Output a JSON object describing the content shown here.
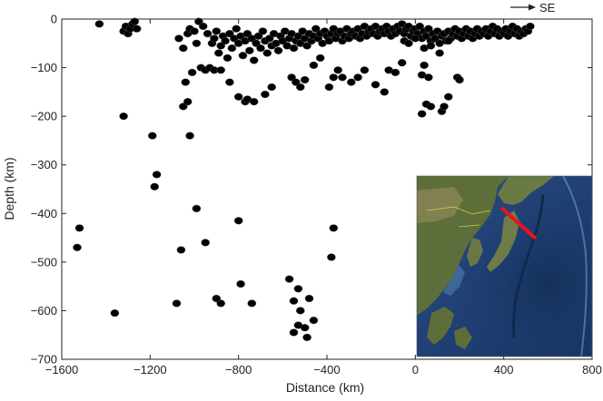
{
  "chart_data": {
    "type": "scatter",
    "xlabel": "Distance (km)",
    "ylabel": "Depth (km)",
    "xlim": [
      -1600,
      800
    ],
    "ylim": [
      -700,
      0
    ],
    "x_ticks": [
      -1600,
      -1200,
      -800,
      -400,
      0,
      400,
      800
    ],
    "y_ticks": [
      0,
      -100,
      -200,
      -300,
      -400,
      -500,
      -600,
      -700
    ],
    "x_tick_labels": [
      "−1600",
      "−1200",
      "−800",
      "−400",
      "0",
      "400",
      "800"
    ],
    "y_tick_labels": [
      "0",
      "−100",
      "−200",
      "−300",
      "−400",
      "−500",
      "−600",
      "−700"
    ],
    "grid": false,
    "legend": "none",
    "marker_color": "#000000",
    "annotation": {
      "text": "SE",
      "arrow": "right",
      "position": "top-right"
    },
    "inset": {
      "kind": "map",
      "position": "bottom-right",
      "profile_line_color": "#e8141c"
    },
    "points": [
      [
        -1430,
        -10
      ],
      [
        -1320,
        -25
      ],
      [
        -1310,
        -15
      ],
      [
        -1300,
        -30
      ],
      [
        -1290,
        -20
      ],
      [
        -1280,
        -10
      ],
      [
        -1270,
        -5
      ],
      [
        -1260,
        -20
      ],
      [
        -1070,
        -40
      ],
      [
        -1050,
        -60
      ],
      [
        -1030,
        -30
      ],
      [
        -1020,
        -20
      ],
      [
        -1000,
        -25
      ],
      [
        -990,
        -50
      ],
      [
        -980,
        -5
      ],
      [
        -960,
        -15
      ],
      [
        -940,
        -30
      ],
      [
        -920,
        -50
      ],
      [
        -910,
        -40
      ],
      [
        -900,
        -25
      ],
      [
        -890,
        -70
      ],
      [
        -880,
        -55
      ],
      [
        -870,
        -35
      ],
      [
        -860,
        -45
      ],
      [
        -850,
        -80
      ],
      [
        -840,
        -30
      ],
      [
        -830,
        -60
      ],
      [
        -820,
        -40
      ],
      [
        -810,
        -20
      ],
      [
        -800,
        -50
      ],
      [
        -790,
        -35
      ],
      [
        -780,
        -75
      ],
      [
        -770,
        -45
      ],
      [
        -760,
        -30
      ],
      [
        -750,
        -65
      ],
      [
        -740,
        -40
      ],
      [
        -730,
        -85
      ],
      [
        -720,
        -50
      ],
      [
        -710,
        -35
      ],
      [
        -700,
        -60
      ],
      [
        -690,
        -25
      ],
      [
        -680,
        -45
      ],
      [
        -670,
        -70
      ],
      [
        -660,
        -40
      ],
      [
        -650,
        -55
      ],
      [
        -640,
        -30
      ],
      [
        -630,
        -50
      ],
      [
        -620,
        -65
      ],
      [
        -610,
        -35
      ],
      [
        -600,
        -45
      ],
      [
        -590,
        -25
      ],
      [
        -580,
        -55
      ],
      [
        -570,
        -40
      ],
      [
        -560,
        -30
      ],
      [
        -550,
        -60
      ],
      [
        -540,
        -45
      ],
      [
        -530,
        -35
      ],
      [
        -520,
        -50
      ],
      [
        -510,
        -25
      ],
      [
        -500,
        -40
      ],
      [
        -490,
        -55
      ],
      [
        -480,
        -30
      ],
      [
        -470,
        -45
      ],
      [
        -460,
        -35
      ],
      [
        -450,
        -20
      ],
      [
        -440,
        -40
      ],
      [
        -430,
        -30
      ],
      [
        -420,
        -50
      ],
      [
        -410,
        -25
      ],
      [
        -400,
        -35
      ],
      [
        -390,
        -45
      ],
      [
        -380,
        -30
      ],
      [
        -370,
        -20
      ],
      [
        -360,
        -40
      ],
      [
        -350,
        -30
      ],
      [
        -340,
        -25
      ],
      [
        -330,
        -45
      ],
      [
        -320,
        -35
      ],
      [
        -310,
        -20
      ],
      [
        -300,
        -40
      ],
      [
        -290,
        -30
      ],
      [
        -280,
        -25
      ],
      [
        -270,
        -35
      ],
      [
        -260,
        -20
      ],
      [
        -250,
        -40
      ],
      [
        -240,
        -30
      ],
      [
        -230,
        -15
      ],
      [
        -220,
        -35
      ],
      [
        -210,
        -25
      ],
      [
        -200,
        -20
      ],
      [
        -190,
        -30
      ],
      [
        -180,
        -15
      ],
      [
        -170,
        -35
      ],
      [
        -160,
        -25
      ],
      [
        -150,
        -20
      ],
      [
        -140,
        -30
      ],
      [
        -130,
        -15
      ],
      [
        -120,
        -25
      ],
      [
        -110,
        -35
      ],
      [
        -100,
        -20
      ],
      [
        -90,
        -30
      ],
      [
        -80,
        -15
      ],
      [
        -70,
        -25
      ],
      [
        -60,
        -10
      ],
      [
        -50,
        -30
      ],
      [
        -40,
        -20
      ],
      [
        -30,
        -15
      ],
      [
        -20,
        -35
      ],
      [
        -10,
        -25
      ],
      [
        0,
        -20
      ],
      [
        10,
        -30
      ],
      [
        20,
        -15
      ],
      [
        30,
        -40
      ],
      [
        40,
        -25
      ],
      [
        50,
        -35
      ],
      [
        60,
        -20
      ],
      [
        70,
        -45
      ],
      [
        80,
        -30
      ],
      [
        90,
        -40
      ],
      [
        100,
        -25
      ],
      [
        110,
        -50
      ],
      [
        120,
        -35
      ],
      [
        130,
        -30
      ],
      [
        140,
        -45
      ],
      [
        150,
        -25
      ],
      [
        160,
        -40
      ],
      [
        170,
        -30
      ],
      [
        180,
        -20
      ],
      [
        190,
        -35
      ],
      [
        200,
        -25
      ],
      [
        210,
        -40
      ],
      [
        220,
        -30
      ],
      [
        230,
        -20
      ],
      [
        240,
        -35
      ],
      [
        250,
        -25
      ],
      [
        260,
        -40
      ],
      [
        270,
        -30
      ],
      [
        280,
        -20
      ],
      [
        290,
        -35
      ],
      [
        300,
        -25
      ],
      [
        310,
        -30
      ],
      [
        320,
        -20
      ],
      [
        330,
        -35
      ],
      [
        340,
        -25
      ],
      [
        350,
        -15
      ],
      [
        360,
        -30
      ],
      [
        370,
        -20
      ],
      [
        380,
        -35
      ],
      [
        390,
        -25
      ],
      [
        400,
        -30
      ],
      [
        410,
        -20
      ],
      [
        420,
        -35
      ],
      [
        430,
        -25
      ],
      [
        440,
        -15
      ],
      [
        450,
        -30
      ],
      [
        460,
        -20
      ],
      [
        470,
        -35
      ],
      [
        480,
        -25
      ],
      [
        490,
        -30
      ],
      [
        500,
        -20
      ],
      [
        510,
        -25
      ],
      [
        520,
        -15
      ],
      [
        -50,
        -45
      ],
      [
        -30,
        -50
      ],
      [
        0,
        -40
      ],
      [
        40,
        -60
      ],
      [
        70,
        -55
      ],
      [
        110,
        -70
      ],
      [
        150,
        -45
      ],
      [
        -1040,
        -130
      ],
      [
        -1010,
        -110
      ],
      [
        -970,
        -100
      ],
      [
        -950,
        -105
      ],
      [
        -930,
        -100
      ],
      [
        -910,
        -105
      ],
      [
        -880,
        -105
      ],
      [
        -840,
        -130
      ],
      [
        -800,
        -160
      ],
      [
        -770,
        -170
      ],
      [
        -760,
        -165
      ],
      [
        -730,
        -170
      ],
      [
        -680,
        -155
      ],
      [
        -650,
        -140
      ],
      [
        -560,
        -120
      ],
      [
        -540,
        -130
      ],
      [
        -520,
        -140
      ],
      [
        -500,
        -125
      ],
      [
        -460,
        -95
      ],
      [
        -430,
        -80
      ],
      [
        -390,
        -140
      ],
      [
        -370,
        -120
      ],
      [
        -350,
        -105
      ],
      [
        -330,
        -120
      ],
      [
        -290,
        -130
      ],
      [
        -260,
        -120
      ],
      [
        -230,
        -105
      ],
      [
        -180,
        -135
      ],
      [
        -140,
        -150
      ],
      [
        -120,
        -105
      ],
      [
        -90,
        -110
      ],
      [
        -60,
        -90
      ],
      [
        -1050,
        -180
      ],
      [
        -1030,
        -170
      ],
      [
        -1020,
        -240
      ],
      [
        -1320,
        -200
      ],
      [
        -1190,
        -240
      ],
      [
        -1170,
        -320
      ],
      [
        -1180,
        -345
      ],
      [
        30,
        -115
      ],
      [
        40,
        -95
      ],
      [
        60,
        -120
      ],
      [
        50,
        -175
      ],
      [
        30,
        -195
      ],
      [
        70,
        -180
      ],
      [
        120,
        -190
      ],
      [
        130,
        -180
      ],
      [
        150,
        -160
      ],
      [
        190,
        -120
      ],
      [
        200,
        -125
      ],
      [
        -1530,
        -470
      ],
      [
        -1520,
        -430
      ],
      [
        -1360,
        -605
      ],
      [
        -1060,
        -475
      ],
      [
        -990,
        -390
      ],
      [
        -950,
        -460
      ],
      [
        -900,
        -575
      ],
      [
        -880,
        -585
      ],
      [
        -800,
        -415
      ],
      [
        -790,
        -545
      ],
      [
        -740,
        -585
      ],
      [
        -1080,
        -585
      ],
      [
        -570,
        -535
      ],
      [
        -550,
        -580
      ],
      [
        -530,
        -555
      ],
      [
        -520,
        -600
      ],
      [
        -500,
        -635
      ],
      [
        -490,
        -655
      ],
      [
        -480,
        -575
      ],
      [
        -460,
        -620
      ],
      [
        -550,
        -645
      ],
      [
        -380,
        -490
      ],
      [
        -370,
        -430
      ],
      [
        -530,
        -630
      ]
    ],
    "marker_sizes": []
  }
}
